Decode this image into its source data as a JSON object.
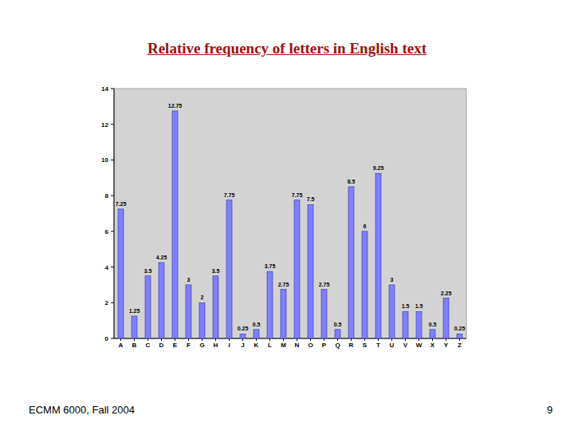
{
  "chart_data": {
    "type": "bar",
    "title": "Relative frequency of letters in English text",
    "categories": [
      "A",
      "B",
      "C",
      "D",
      "E",
      "F",
      "G",
      "H",
      "I",
      "J",
      "K",
      "L",
      "M",
      "N",
      "O",
      "P",
      "Q",
      "R",
      "S",
      "T",
      "U",
      "V",
      "W",
      "X",
      "Y",
      "Z"
    ],
    "values": [
      7.25,
      1.25,
      3.5,
      4.25,
      12.75,
      3,
      2,
      3.5,
      7.75,
      0.25,
      0.5,
      3.75,
      2.75,
      7.75,
      7.5,
      2.75,
      0.5,
      8.5,
      6,
      9.25,
      3,
      1.5,
      1.5,
      0.5,
      2.25,
      0.25
    ],
    "color": "#8080ff",
    "ylim": [
      0,
      14
    ],
    "yticks": [
      0,
      2,
      4,
      6,
      8,
      10,
      12,
      14
    ],
    "grid": false,
    "data_labels": true
  },
  "footer": {
    "course": "ECMM 6000, Fall 2004",
    "page": "9"
  }
}
